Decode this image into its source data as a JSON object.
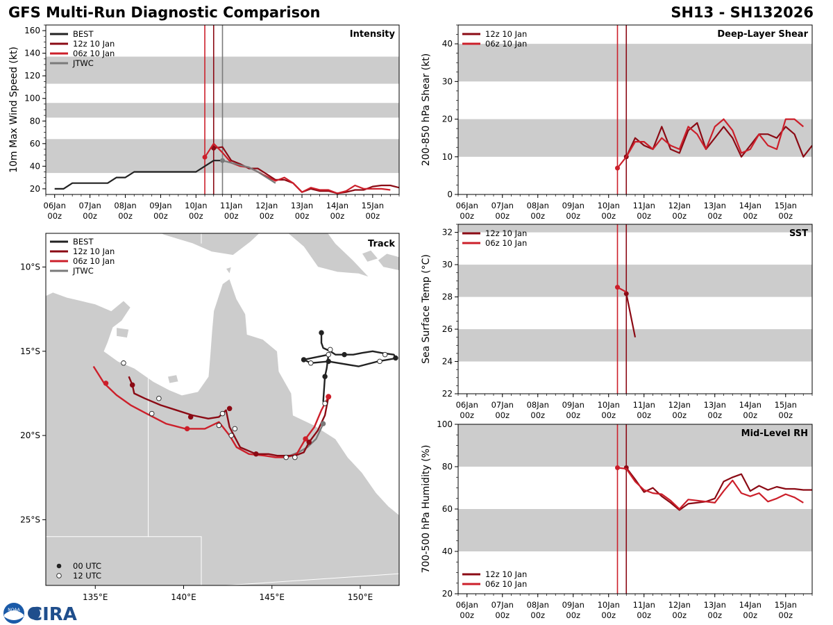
{
  "header": {
    "title": "GFS Multi-Run Diagnostic Comparison",
    "storm": "SH13 - SH132026"
  },
  "logo": {
    "text": "CIRA",
    "noaa_text": "NOAA"
  },
  "colors": {
    "best": "#222222",
    "run12z": "#8b0a14",
    "run06z": "#cc1f2a",
    "jtwc": "#7a7a7a",
    "band": "#cccccc",
    "land": "#cccccc",
    "ocean": "#ffffff"
  },
  "legend": {
    "best": "BEST",
    "run12z": "12z 10 Jan",
    "run06z": "06z 10 Jan",
    "jtwc": "JTWC",
    "utc00": "00 UTC",
    "utc12": "12 UTC"
  },
  "time_axis": {
    "ticks": [
      {
        "d": 0,
        "l1": "06Jan",
        "l2": "00z"
      },
      {
        "d": 1,
        "l1": "07Jan",
        "l2": "00z"
      },
      {
        "d": 2,
        "l1": "08Jan",
        "l2": "00z"
      },
      {
        "d": 3,
        "l1": "09Jan",
        "l2": "00z"
      },
      {
        "d": 4,
        "l1": "10Jan",
        "l2": "00z"
      },
      {
        "d": 5,
        "l1": "11Jan",
        "l2": "00z"
      },
      {
        "d": 6,
        "l1": "12Jan",
        "l2": "00z"
      },
      {
        "d": 7,
        "l1": "13Jan",
        "l2": "00z"
      },
      {
        "d": 8,
        "l1": "14Jan",
        "l2": "00z"
      },
      {
        "d": 9,
        "l1": "15Jan",
        "l2": "00z"
      }
    ],
    "xlim_days": [
      -0.25,
      9.75
    ],
    "vlines": [
      {
        "d": 4.25,
        "c": "run06z"
      },
      {
        "d": 4.5,
        "c": "run12z"
      },
      {
        "d": 4.75,
        "c": "jtwc"
      }
    ]
  },
  "chart_data": [
    {
      "id": "intensity",
      "type": "line",
      "title": "Intensity",
      "ylabel": "10m Max Wind Speed (kt)",
      "ylim": [
        15,
        165
      ],
      "yticks": [
        20,
        40,
        60,
        80,
        100,
        120,
        140,
        160
      ],
      "bands": [
        [
          34,
          64
        ],
        [
          83,
          96
        ],
        [
          113,
          137
        ]
      ],
      "series": [
        {
          "name": "BEST",
          "c": "best",
          "x": [
            0,
            0.25,
            0.5,
            0.75,
            1,
            1.25,
            1.5,
            1.75,
            2,
            2.25,
            2.5,
            2.75,
            3,
            3.25,
            3.5,
            3.75,
            4,
            4.25,
            4.5,
            4.75
          ],
          "y": [
            20,
            20,
            25,
            25,
            25,
            25,
            25,
            30,
            30,
            35,
            35,
            35,
            35,
            35,
            35,
            35,
            35,
            40,
            45,
            45
          ]
        },
        {
          "name": "12z 10 Jan",
          "c": "run12z",
          "x": [
            4.5,
            4.75,
            5,
            5.25,
            5.5,
            5.75,
            6,
            6.25,
            6.5,
            6.75,
            7,
            7.25,
            7.5,
            7.75,
            8,
            8.25,
            8.5,
            8.75,
            9,
            9.25,
            9.5,
            9.75
          ],
          "y": [
            56,
            57,
            45,
            42,
            38,
            38,
            33,
            28,
            28,
            25,
            17,
            20,
            18,
            18,
            16,
            17,
            19,
            19,
            22,
            23,
            23,
            21
          ]
        },
        {
          "name": "06z 10 Jan",
          "c": "run06z",
          "x": [
            4.25,
            4.5,
            4.75,
            5,
            5.25,
            5.5,
            5.75,
            6,
            6.25,
            6.5,
            6.75,
            7,
            7.25,
            7.5,
            7.75,
            8,
            8.25,
            8.5,
            8.75,
            9,
            9.25,
            9.5
          ],
          "y": [
            48,
            60,
            52,
            43,
            40,
            39,
            35,
            31,
            27,
            30,
            25,
            17,
            21,
            19,
            19,
            16,
            18,
            23,
            20,
            20,
            20,
            19
          ]
        },
        {
          "name": "JTWC",
          "c": "jtwc",
          "x": [
            4.75,
            5,
            5.25,
            5.5,
            5.75,
            6,
            6.25
          ],
          "y": [
            45,
            43,
            41,
            39,
            35,
            30,
            25
          ]
        }
      ]
    },
    {
      "id": "shear",
      "type": "line",
      "title": "Deep-Layer Shear",
      "ylabel": "200-850 hPa Shear (kt)",
      "ylim": [
        0,
        45
      ],
      "yticks": [
        0,
        10,
        20,
        30,
        40
      ],
      "bands": [
        [
          10,
          20
        ],
        [
          30,
          40
        ]
      ],
      "series": [
        {
          "name": "12z 10 Jan",
          "c": "run12z",
          "x": [
            4.5,
            4.75,
            5,
            5.25,
            5.5,
            5.75,
            6,
            6.25,
            6.5,
            6.75,
            7,
            7.25,
            7.5,
            7.75,
            8,
            8.25,
            8.5,
            8.75,
            9,
            9.25,
            9.5,
            9.75
          ],
          "y": [
            10,
            15,
            13,
            12,
            18,
            12,
            11,
            17,
            19,
            12,
            15,
            18,
            15,
            10,
            13,
            16,
            16,
            15,
            18,
            16,
            10,
            13
          ]
        },
        {
          "name": "06z 10 Jan",
          "c": "run06z",
          "x": [
            4.25,
            4.5,
            4.75,
            5,
            5.25,
            5.5,
            5.75,
            6,
            6.25,
            6.5,
            6.75,
            7,
            7.25,
            7.5,
            7.75,
            8,
            8.25,
            8.5,
            8.75,
            9,
            9.25,
            9.5
          ],
          "y": [
            7,
            10,
            14,
            14,
            12,
            15,
            13,
            12,
            18,
            16,
            12,
            18,
            20,
            17,
            11,
            12,
            16,
            13,
            12,
            20,
            20,
            18
          ]
        }
      ]
    },
    {
      "id": "sst",
      "type": "line",
      "title": "SST",
      "ylabel": "Sea Surface Temp (°C)",
      "ylim": [
        22,
        32.5
      ],
      "yticks": [
        22,
        24,
        26,
        28,
        30,
        32
      ],
      "bands": [
        [
          24,
          26
        ],
        [
          28,
          30
        ],
        [
          32,
          34
        ]
      ],
      "series": [
        {
          "name": "12z 10 Jan",
          "c": "run12z",
          "x": [
            4.5,
            4.75
          ],
          "y": [
            28.2,
            25.5
          ]
        },
        {
          "name": "06z 10 Jan",
          "c": "run06z",
          "x": [
            4.25,
            4.5
          ],
          "y": [
            28.6,
            28.3
          ]
        }
      ]
    },
    {
      "id": "rh",
      "type": "line",
      "title": "Mid-Level RH",
      "ylabel": "700-500 hPa Humidity (%)",
      "ylim": [
        20,
        100
      ],
      "yticks": [
        20,
        40,
        60,
        80,
        100
      ],
      "bands": [
        [
          40,
          60
        ],
        [
          80,
          100
        ]
      ],
      "series": [
        {
          "name": "12z 10 Jan",
          "c": "run12z",
          "x": [
            4.5,
            4.75,
            5,
            5.25,
            5.5,
            5.75,
            6,
            6.25,
            6.5,
            6.75,
            7,
            7.25,
            7.5,
            7.75,
            8,
            8.25,
            8.5,
            8.75,
            9,
            9.25,
            9.5,
            9.75
          ],
          "y": [
            79.5,
            74,
            68,
            70,
            66,
            63,
            59.5,
            62.5,
            63,
            63.5,
            65,
            73,
            75,
            76.5,
            68.5,
            71,
            69,
            70.5,
            69.5,
            69.5,
            69,
            69
          ]
        },
        {
          "name": "06z 10 Jan",
          "c": "run06z",
          "x": [
            4.25,
            4.5,
            4.75,
            5,
            5.25,
            5.5,
            5.75,
            6,
            6.25,
            6.5,
            6.75,
            7,
            7.25,
            7.5,
            7.75,
            8,
            8.25,
            8.5,
            8.75,
            9,
            9.25,
            9.5
          ],
          "y": [
            79.5,
            79,
            73,
            69,
            67.5,
            67,
            64,
            60,
            64.5,
            64,
            63.5,
            63,
            68.5,
            73.5,
            67.5,
            66,
            67.5,
            63.5,
            65,
            67,
            65.5,
            63
          ]
        }
      ]
    },
    {
      "id": "track",
      "type": "line",
      "title": "Track",
      "xlim": [
        132.2,
        152.2
      ],
      "ylim": [
        -28.9,
        -8.0
      ],
      "xticks": [
        {
          "v": 135,
          "l": "135°E"
        },
        {
          "v": 140,
          "l": "140°E"
        },
        {
          "v": 145,
          "l": "145°E"
        },
        {
          "v": 150,
          "l": "150°E"
        }
      ],
      "yticks": [
        {
          "v": -10,
          "l": "10°S"
        },
        {
          "v": -15,
          "l": "15°S"
        },
        {
          "v": -20,
          "l": "20°S"
        },
        {
          "v": -25,
          "l": "25°S"
        }
      ],
      "series": [
        {
          "name": "BEST",
          "c": "best",
          "lon": [
            147.8,
            147.8,
            147.9,
            148.3,
            148.6,
            149.0,
            149.6,
            150.1,
            150.7,
            151.2,
            151.9,
            152.0,
            152.1,
            151.0,
            149.9,
            148.2,
            147.2,
            146.8,
            148.2,
            148.1,
            148.0,
            147.9
          ],
          "lat": [
            -13.9,
            -14.5,
            -14.8,
            -15.0,
            -15.2,
            -15.2,
            -15.2,
            -15.1,
            -15.0,
            -15.1,
            -15.2,
            -15.4,
            -15.4,
            -15.6,
            -15.9,
            -15.6,
            -15.7,
            -15.5,
            -15.2,
            -16.0,
            -16.5,
            -18.0
          ],
          "dots": [
            {
              "lon": 147.8,
              "lat": -13.9,
              "k": 0
            },
            {
              "lon": 148.3,
              "lat": -14.9,
              "k": 1
            },
            {
              "lon": 148.2,
              "lat": -15.2,
              "k": 1
            },
            {
              "lon": 149.1,
              "lat": -15.2,
              "k": 0
            },
            {
              "lon": 151.4,
              "lat": -15.2,
              "k": 1
            },
            {
              "lon": 152.0,
              "lat": -15.4,
              "k": 0
            },
            {
              "lon": 151.1,
              "lat": -15.6,
              "k": 1
            },
            {
              "lon": 148.2,
              "lat": -15.6,
              "k": 0
            },
            {
              "lon": 146.8,
              "lat": -15.5,
              "k": 0
            },
            {
              "lon": 147.2,
              "lat": -15.7,
              "k": 1
            },
            {
              "lon": 148.0,
              "lat": -16.5,
              "k": 0
            },
            {
              "lon": 148.0,
              "lat": -18.1,
              "k": 1
            }
          ]
        },
        {
          "name": "12z 10 Jan",
          "c": "run12z",
          "lon": [
            148.2,
            148.0,
            147.6,
            147.1,
            146.8,
            146.3,
            145.8,
            145.3,
            144.8,
            144.1,
            143.2,
            142.6,
            142.4,
            142.0,
            141.4,
            140.5,
            139.6,
            138.7,
            137.8,
            137.2,
            137.1,
            136.9
          ],
          "lat": [
            -17.7,
            -18.8,
            -19.7,
            -20.4,
            -21.0,
            -21.2,
            -21.2,
            -21.2,
            -21.1,
            -21.1,
            -20.7,
            -19.5,
            -18.5,
            -18.9,
            -19.0,
            -18.8,
            -18.5,
            -18.2,
            -17.8,
            -17.5,
            -17.0,
            -16.5
          ],
          "dots": [
            {
              "lon": 147.1,
              "lat": -20.4,
              "k": 0
            },
            {
              "lon": 145.8,
              "lat": -21.3,
              "k": 1
            },
            {
              "lon": 144.1,
              "lat": -21.1,
              "k": 0
            },
            {
              "lon": 142.6,
              "lat": -18.4,
              "k": 0
            },
            {
              "lon": 142.2,
              "lat": -18.7,
              "k": 1
            },
            {
              "lon": 140.4,
              "lat": -18.9,
              "k": 0
            },
            {
              "lon": 138.6,
              "lat": -17.8,
              "k": 1
            },
            {
              "lon": 137.1,
              "lat": -17.0,
              "k": 0
            },
            {
              "lon": 136.6,
              "lat": -15.7,
              "k": 1
            }
          ]
        },
        {
          "name": "06z 10 Jan",
          "c": "run06z",
          "lon": [
            148.2,
            147.8,
            147.4,
            146.9,
            146.4,
            145.8,
            145.2,
            144.6,
            143.7,
            143.0,
            142.6,
            142.0,
            141.2,
            140.1,
            139.0,
            137.9,
            137.0,
            136.2,
            135.5,
            134.9
          ],
          "lat": [
            -17.7,
            -18.5,
            -19.5,
            -20.2,
            -21.1,
            -21.3,
            -21.3,
            -21.2,
            -21.1,
            -20.7,
            -20.0,
            -19.2,
            -19.6,
            -19.6,
            -19.3,
            -18.7,
            -18.2,
            -17.6,
            -16.9,
            -15.9
          ],
          "dots": [
            {
              "lon": 146.9,
              "lat": -20.2,
              "k": 0
            },
            {
              "lon": 146.3,
              "lat": -21.3,
              "k": 1
            },
            {
              "lon": 142.9,
              "lat": -19.6,
              "k": 1
            },
            {
              "lon": 142.7,
              "lat": -20.0,
              "k": 1
            },
            {
              "lon": 142.0,
              "lat": -19.4,
              "k": 1
            },
            {
              "lon": 140.2,
              "lat": -19.6,
              "k": 0
            },
            {
              "lon": 138.2,
              "lat": -18.7,
              "k": 1
            },
            {
              "lon": 135.6,
              "lat": -16.9,
              "k": 0
            }
          ]
        },
        {
          "name": "JTWC",
          "c": "jtwc",
          "lon": [
            147.9,
            147.5,
            147.0,
            146.5,
            146.0
          ],
          "lat": [
            -19.3,
            -20.2,
            -20.7,
            -21.0,
            -21.2
          ],
          "dots": [
            {
              "lon": 147.9,
              "lat": -19.3,
              "k": 0
            }
          ]
        }
      ]
    }
  ]
}
